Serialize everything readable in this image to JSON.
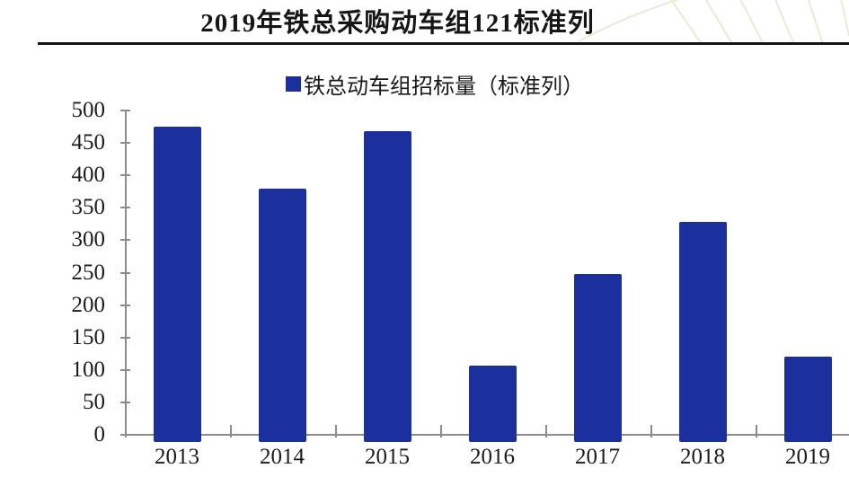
{
  "title": "2019年铁总采购动车组121标准列",
  "legend": {
    "label": "铁总动车组招标量（标准列）"
  },
  "colors": {
    "bar": "#1B309C",
    "axis": "#8C8C8C",
    "text": "#1A1A1A",
    "rule": "#161616",
    "watermark": "#E6E2C6"
  },
  "chart_data": {
    "type": "bar",
    "title": "2019年铁总采购动车组121标准列",
    "series_name": "铁总动车组招标量（标准列）",
    "categories": [
      "2013",
      "2014",
      "2015",
      "2016",
      "2017",
      "2018",
      "2019"
    ],
    "values": [
      475,
      380,
      468,
      107,
      248,
      328,
      121
    ],
    "xlabel": "",
    "ylabel": "",
    "ylim": [
      0,
      500
    ],
    "yticks": [
      0,
      50,
      100,
      150,
      200,
      250,
      300,
      350,
      400,
      450,
      500
    ],
    "grid": false,
    "legend_position": "top-center",
    "bar_color": "#1B309C"
  }
}
